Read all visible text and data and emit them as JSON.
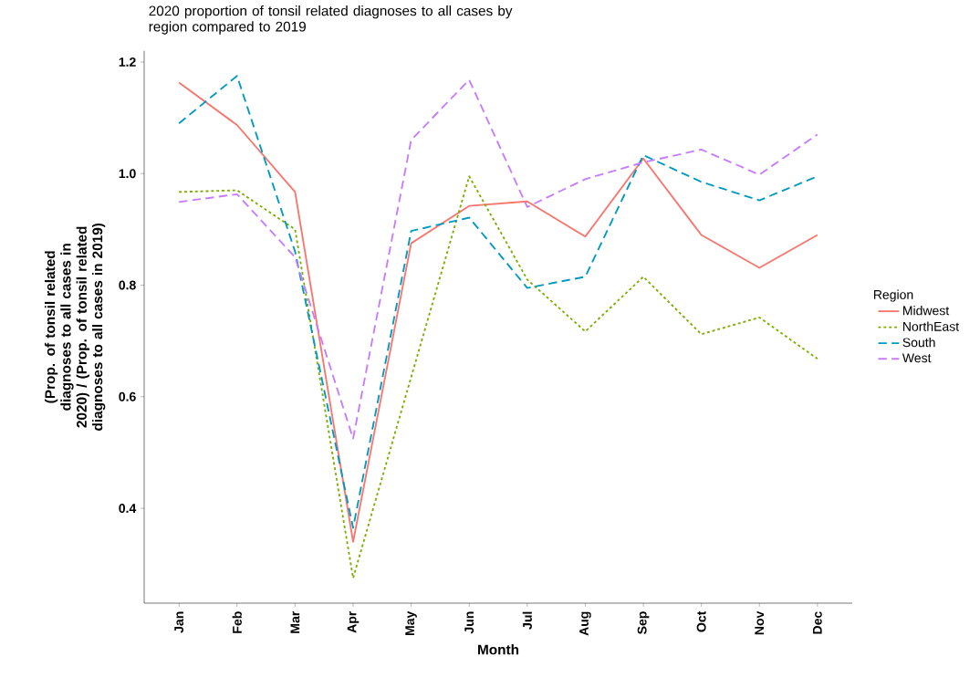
{
  "chart_data": {
    "type": "line",
    "title": "2020 proportion of tonsil related diagnoses to all cases by region compared to 2019",
    "xlabel": "Month",
    "ylabel": "(Prop. of tonsil related diagnoses to all cases in 2020) / (Prop. of tonsil related diagnoses to all cases in 2019)",
    "legend_title": "Region",
    "legend": "right",
    "grid": false,
    "categories": [
      "Jan",
      "Feb",
      "Mar",
      "Apr",
      "May",
      "Jun",
      "Jul",
      "Aug",
      "Sep",
      "Oct",
      "Nov",
      "Dec"
    ],
    "ylim": [
      0.23,
      1.22
    ],
    "yticks": [
      0.4,
      0.6,
      0.8,
      {
        "value": 1.0,
        "label": "1.0"
      },
      1.2
    ],
    "series": [
      {
        "name": "Midwest",
        "color": "#f8766d",
        "line_style": "solid",
        "values": [
          1.163,
          1.087,
          0.967,
          0.34,
          0.875,
          0.942,
          0.95,
          0.887,
          1.027,
          0.89,
          0.831,
          0.89
        ]
      },
      {
        "name": "NorthEast",
        "color": "#7cae00",
        "line_style": "dotted",
        "values": [
          0.967,
          0.97,
          0.9,
          0.275,
          0.635,
          0.995,
          0.81,
          0.717,
          0.815,
          0.712,
          0.742,
          0.668
        ]
      },
      {
        "name": "South",
        "color": "#0099c2",
        "line_style": "dashed",
        "values": [
          1.09,
          1.175,
          0.86,
          0.365,
          0.897,
          0.921,
          0.795,
          0.815,
          1.033,
          0.985,
          0.952,
          0.995
        ]
      },
      {
        "name": "West",
        "color": "#c77cff",
        "line_style": "dashed",
        "values": [
          0.949,
          0.963,
          0.85,
          0.525,
          1.06,
          1.168,
          0.94,
          0.99,
          1.02,
          1.043,
          0.998,
          1.07
        ]
      }
    ]
  }
}
